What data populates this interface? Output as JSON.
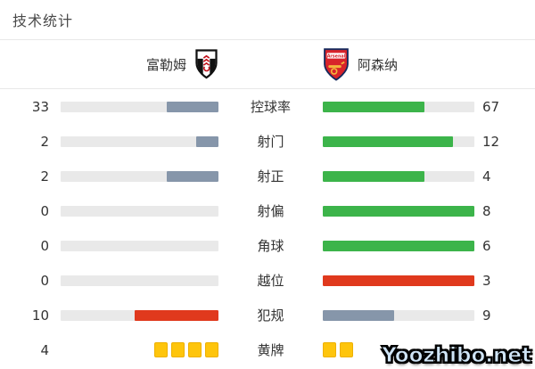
{
  "title": "技术统计",
  "teams": {
    "home": {
      "name": "富勒姆"
    },
    "away": {
      "name": "阿森纳"
    }
  },
  "watermark": "Yoozhibo.net",
  "colors": {
    "green": "#3cb44a",
    "slate": "#8696aa",
    "red": "#e0391d",
    "yellow": "#fec50c",
    "track": "#e9e9e9"
  },
  "rows": [
    {
      "label": "控球率",
      "home": {
        "value": "33",
        "fill": 33,
        "color": "slate"
      },
      "away": {
        "value": "67",
        "fill": 67,
        "color": "green"
      }
    },
    {
      "label": "射门",
      "home": {
        "value": "2",
        "fill": 14,
        "color": "slate"
      },
      "away": {
        "value": "12",
        "fill": 86,
        "color": "green"
      }
    },
    {
      "label": "射正",
      "home": {
        "value": "2",
        "fill": 33,
        "color": "slate"
      },
      "away": {
        "value": "4",
        "fill": 67,
        "color": "green"
      }
    },
    {
      "label": "射偏",
      "home": {
        "value": "0",
        "fill": 0,
        "color": "slate"
      },
      "away": {
        "value": "8",
        "fill": 100,
        "color": "green"
      }
    },
    {
      "label": "角球",
      "home": {
        "value": "0",
        "fill": 0,
        "color": "slate"
      },
      "away": {
        "value": "6",
        "fill": 100,
        "color": "green"
      }
    },
    {
      "label": "越位",
      "home": {
        "value": "0",
        "fill": 0,
        "color": "slate"
      },
      "away": {
        "value": "3",
        "fill": 100,
        "color": "red"
      }
    },
    {
      "label": "犯规",
      "home": {
        "value": "10",
        "fill": 53,
        "color": "red"
      },
      "away": {
        "value": "9",
        "fill": 47,
        "color": "slate"
      }
    },
    {
      "label": "黄牌",
      "home": {
        "value": "4",
        "cards": 4
      },
      "away": {
        "value": "",
        "cards": 2
      }
    }
  ],
  "chart_data": {
    "type": "bar",
    "title": "技术统计",
    "layout": "mirrored-horizontal-paired-bars",
    "categories": [
      "控球率",
      "射门",
      "射正",
      "射偏",
      "角球",
      "越位",
      "犯规",
      "黄牌"
    ],
    "series": [
      {
        "name": "富勒姆",
        "values": [
          33,
          2,
          2,
          0,
          0,
          0,
          10,
          4
        ]
      },
      {
        "name": "阿森纳",
        "values": [
          67,
          12,
          4,
          8,
          6,
          3,
          9,
          2
        ]
      }
    ],
    "notes": "黄牌 row rendered as yellow card icons; 越位/犯规 leader bars are red, other filled bars green (away) or slate (home); home bars grow right-to-left, away bars left-to-right"
  }
}
